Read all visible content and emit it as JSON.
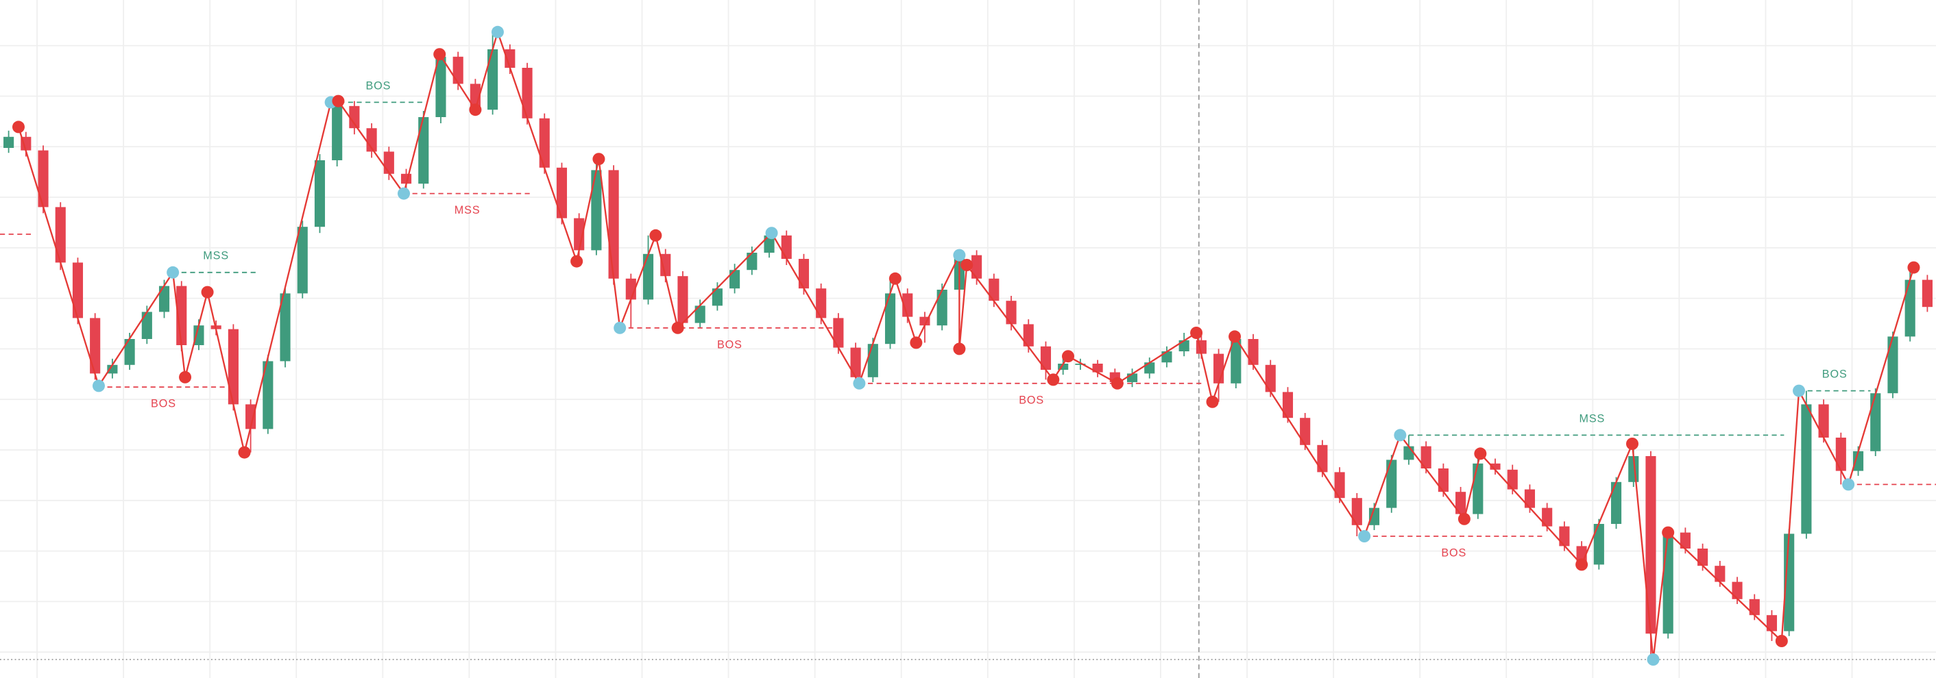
{
  "chart_data": {
    "type": "candlestick",
    "xlim": [
      -0.5,
      111.5
    ],
    "ylim": [
      0,
      550
    ],
    "up_color": "#3f9b7d",
    "down_color": "#e5434f",
    "candles": [
      [
        430,
        444,
        426,
        439
      ],
      [
        439,
        443,
        423,
        428
      ],
      [
        428,
        432,
        377,
        382
      ],
      [
        382,
        386,
        331,
        337
      ],
      [
        337,
        341,
        287,
        292
      ],
      [
        292,
        296,
        242,
        247
      ],
      [
        247,
        259,
        243,
        254
      ],
      [
        254,
        280,
        250,
        275
      ],
      [
        275,
        302,
        271,
        297
      ],
      [
        297,
        323,
        292,
        318
      ],
      [
        318,
        322,
        265,
        270
      ],
      [
        270,
        291,
        266,
        286
      ],
      [
        286,
        290,
        278,
        283
      ],
      [
        283,
        287,
        217,
        222
      ],
      [
        222,
        226,
        183,
        202
      ],
      [
        202,
        262,
        198,
        257
      ],
      [
        257,
        317,
        252,
        312
      ],
      [
        312,
        371,
        308,
        366
      ],
      [
        366,
        425,
        361,
        420
      ],
      [
        420,
        468,
        415,
        464
      ],
      [
        464,
        468,
        441,
        446
      ],
      [
        446,
        450,
        422,
        427
      ],
      [
        427,
        431,
        404,
        409
      ],
      [
        409,
        413,
        393,
        401
      ],
      [
        401,
        460,
        397,
        455
      ],
      [
        455,
        506,
        450,
        504
      ],
      [
        504,
        508,
        477,
        482
      ],
      [
        482,
        486,
        458,
        461
      ],
      [
        461,
        524,
        457,
        510
      ],
      [
        510,
        514,
        490,
        495
      ],
      [
        495,
        499,
        449,
        454
      ],
      [
        454,
        458,
        409,
        414
      ],
      [
        414,
        418,
        368,
        373
      ],
      [
        373,
        377,
        338,
        347
      ],
      [
        347,
        421,
        343,
        412
      ],
      [
        412,
        416,
        319,
        324
      ],
      [
        324,
        328,
        284,
        307
      ],
      [
        307,
        359,
        303,
        344
      ],
      [
        344,
        348,
        321,
        326
      ],
      [
        326,
        330,
        284,
        288
      ],
      [
        288,
        307,
        284,
        302
      ],
      [
        302,
        321,
        298,
        316
      ],
      [
        316,
        336,
        312,
        331
      ],
      [
        331,
        350,
        327,
        345
      ],
      [
        345,
        361,
        341,
        359
      ],
      [
        359,
        363,
        335,
        340
      ],
      [
        340,
        344,
        311,
        316
      ],
      [
        316,
        320,
        287,
        292
      ],
      [
        292,
        296,
        263,
        268
      ],
      [
        268,
        272,
        239,
        244
      ],
      [
        244,
        276,
        240,
        271
      ],
      [
        271,
        324,
        267,
        312
      ],
      [
        312,
        316,
        288,
        293
      ],
      [
        293,
        297,
        272,
        286
      ],
      [
        286,
        320,
        282,
        315
      ],
      [
        315,
        345,
        267,
        343
      ],
      [
        343,
        347,
        319,
        324
      ],
      [
        324,
        328,
        301,
        306
      ],
      [
        306,
        310,
        282,
        287
      ],
      [
        287,
        291,
        264,
        269
      ],
      [
        269,
        273,
        242,
        250
      ],
      [
        250,
        261,
        246,
        255
      ],
      [
        255,
        259,
        250,
        255
      ],
      [
        255,
        258,
        244,
        248
      ],
      [
        248,
        251,
        239,
        240
      ],
      [
        240,
        251,
        236,
        247
      ],
      [
        247,
        260,
        243,
        256
      ],
      [
        256,
        269,
        252,
        265
      ],
      [
        265,
        280,
        261,
        274
      ],
      [
        274,
        280,
        259,
        263
      ],
      [
        263,
        267,
        224,
        239
      ],
      [
        239,
        277,
        235,
        275
      ],
      [
        275,
        279,
        250,
        254
      ],
      [
        254,
        258,
        228,
        232
      ],
      [
        232,
        236,
        207,
        211
      ],
      [
        211,
        215,
        185,
        189
      ],
      [
        189,
        193,
        163,
        167
      ],
      [
        167,
        171,
        142,
        146
      ],
      [
        146,
        150,
        115,
        124
      ],
      [
        124,
        142,
        120,
        138
      ],
      [
        138,
        181,
        134,
        177
      ],
      [
        177,
        197,
        173,
        188
      ],
      [
        188,
        192,
        166,
        170
      ],
      [
        170,
        174,
        147,
        151
      ],
      [
        151,
        155,
        129,
        133
      ],
      [
        133,
        182,
        129,
        174
      ],
      [
        174,
        178,
        165,
        169
      ],
      [
        169,
        173,
        149,
        153
      ],
      [
        153,
        157,
        134,
        138
      ],
      [
        138,
        142,
        119,
        123
      ],
      [
        123,
        127,
        103,
        107
      ],
      [
        107,
        111,
        89,
        92
      ],
      [
        92,
        129,
        88,
        125
      ],
      [
        125,
        163,
        121,
        159
      ],
      [
        159,
        190,
        155,
        180
      ],
      [
        180,
        184,
        15,
        36
      ],
      [
        36,
        122,
        32,
        118
      ],
      [
        118,
        122,
        101,
        105
      ],
      [
        105,
        109,
        87,
        91
      ],
      [
        91,
        95,
        74,
        78
      ],
      [
        78,
        82,
        60,
        64
      ],
      [
        64,
        68,
        47,
        51
      ],
      [
        51,
        55,
        30,
        38
      ],
      [
        38,
        121,
        34,
        117
      ],
      [
        117,
        233,
        113,
        222
      ],
      [
        222,
        226,
        191,
        195
      ],
      [
        195,
        199,
        157,
        168
      ],
      [
        168,
        188,
        164,
        184
      ],
      [
        184,
        235,
        180,
        231
      ],
      [
        231,
        281,
        227,
        277
      ],
      [
        277,
        333,
        273,
        323
      ],
      [
        323,
        327,
        297,
        301
      ]
    ],
    "zigzag": {
      "color": "#e53935",
      "x": [
        0.57,
        5.21,
        9.5,
        10.21,
        11.5,
        13.64,
        18.64,
        19.07,
        22.86,
        24.93,
        27,
        28.29,
        32.86,
        34.14,
        35.36,
        37.43,
        38.71,
        44.14,
        49.21,
        51.29,
        52.5,
        55,
        55,
        55.43,
        60.43,
        61.29,
        64.14,
        68.71,
        69.64,
        70.93,
        78.43,
        80.5,
        84.21,
        85.14,
        91,
        93.93,
        95.14,
        96,
        102.57,
        103.57,
        106.43,
        110.21
      ],
      "values": [
        447,
        237,
        329,
        244,
        313,
        183,
        467,
        468,
        393,
        506,
        461,
        524,
        338,
        421,
        284,
        359,
        284,
        361,
        239,
        324,
        272,
        343,
        267,
        335,
        242,
        261,
        239,
        280,
        224,
        277,
        115,
        197,
        129,
        182,
        92,
        190,
        15,
        118,
        30,
        233,
        157,
        333
      ],
      "marker_colors": [
        "#e53935",
        "#7cc7dd",
        "#7cc7dd",
        "#e53935",
        "#e53935",
        "#e53935",
        "#7cc7dd",
        "#e53935",
        "#7cc7dd",
        "#e53935",
        "#e53935",
        "#7cc7dd",
        "#e53935",
        "#e53935",
        "#7cc7dd",
        "#e53935",
        "#e53935",
        "#7cc7dd",
        "#7cc7dd",
        "#e53935",
        "#e53935",
        "#7cc7dd",
        "#e53935",
        "#e53935",
        "#e53935",
        "#e53935",
        "#e53935",
        "#e53935",
        "#e53935",
        "#e53935",
        "#7cc7dd",
        "#7cc7dd",
        "#e53935",
        "#e53935",
        "#e53935",
        "#e53935",
        "#7cc7dd",
        "#e53935",
        "#e53935",
        "#7cc7dd",
        "#7cc7dd",
        "#e53935"
      ]
    },
    "levels": [
      {
        "label": "MSS",
        "color": "#3f9b7d",
        "x": [
          9.5,
          14.5
        ],
        "value": 329,
        "label_side": "above"
      },
      {
        "label": "BOS",
        "color": "#e5434f",
        "x": [
          5.21,
          12.71
        ],
        "value": 236,
        "label_side": "below"
      },
      {
        "label": "BOS",
        "color": "#3f9b7d",
        "x": [
          18.64,
          24.14
        ],
        "value": 467,
        "label_side": "above"
      },
      {
        "label": "MSS",
        "color": "#e5434f",
        "x": [
          22.86,
          30.21
        ],
        "value": 393,
        "label_side": "below"
      },
      {
        "label": "BOS",
        "color": "#e5434f",
        "x": [
          35.36,
          48.07
        ],
        "value": 284,
        "label_side": "below"
      },
      {
        "label": "BOS",
        "color": "#e5434f",
        "x": [
          49.21,
          69.14
        ],
        "value": 239,
        "label_side": "below"
      },
      {
        "label": "MSS",
        "color": "#3f9b7d",
        "x": [
          80.5,
          102.71
        ],
        "value": 197,
        "label_side": "above"
      },
      {
        "label": "BOS",
        "color": "#e5434f",
        "x": [
          78.43,
          88.79
        ],
        "value": 115,
        "label_side": "below"
      },
      {
        "label": "BOS",
        "color": "#3f9b7d",
        "x": [
          103.57,
          107.71
        ],
        "value": 233,
        "label_side": "above"
      },
      {
        "color": "#e5434f",
        "x": [
          -0.5,
          1.5
        ],
        "value": 360
      },
      {
        "color": "#e5434f",
        "x": [
          106.43,
          111.5
        ],
        "value": 157
      }
    ]
  }
}
